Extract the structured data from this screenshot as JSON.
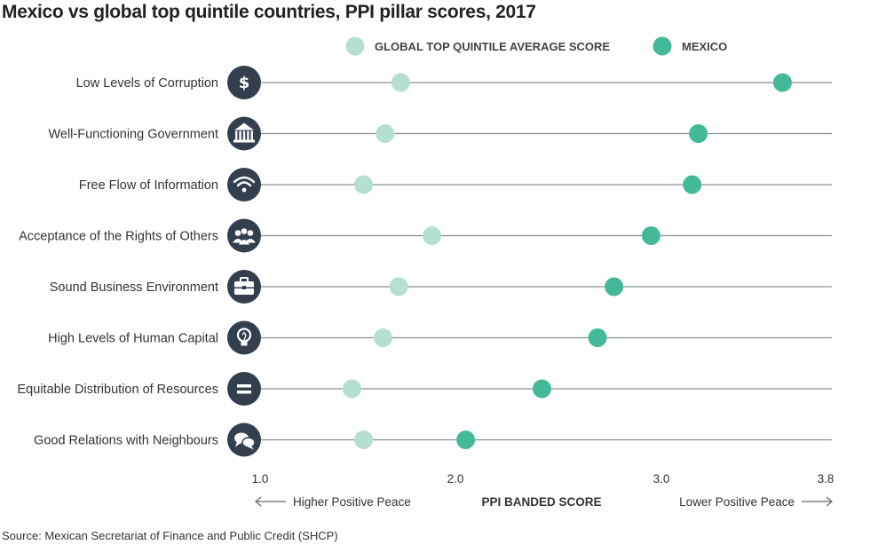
{
  "source": "Source: Mexican Secretariat of Finance and Public Credit (SHCP)",
  "colors": {
    "global": "#b5e0cf",
    "mexico": "#44b99a",
    "icon": "#333f4f",
    "line": "#8a8f96"
  },
  "chart_data": {
    "type": "scatter",
    "title": "Mexico vs global top quintile countries, PPI pillar scores, 2017",
    "xlabel": "PPI BANDED SCORE",
    "xlabel_left": "Higher Positive Peace",
    "xlabel_right": "Lower Positive Peace",
    "x_ticks": [
      "1.0",
      "2.0",
      "3.0",
      "3.8"
    ],
    "xlim": [
      1.0,
      3.8
    ],
    "legend_position": "top",
    "categories": [
      "Low Levels of Corruption",
      "Well-Functioning Government",
      "Free Flow of Information",
      "Acceptance of the Rights of Others",
      "Sound Business Environment",
      "High Levels of Human Capital",
      "Equitable Distribution of Resources",
      "Good Relations with Neighbours"
    ],
    "icons": [
      "dollar-icon",
      "government-building-icon",
      "wifi-icon",
      "people-group-icon",
      "briefcase-icon",
      "lightbulb-icon",
      "equals-icon",
      "speech-bubbles-icon"
    ],
    "series": [
      {
        "name": "GLOBAL TOP QUINTILE AVERAGE  SCORE",
        "color": "#b5e0cf",
        "values": [
          1.72,
          1.64,
          1.53,
          1.88,
          1.71,
          1.63,
          1.47,
          1.53
        ]
      },
      {
        "name": "MEXICO",
        "color": "#44b99a",
        "values": [
          3.59,
          3.18,
          3.15,
          2.95,
          2.77,
          2.69,
          2.42,
          2.05
        ]
      }
    ]
  }
}
